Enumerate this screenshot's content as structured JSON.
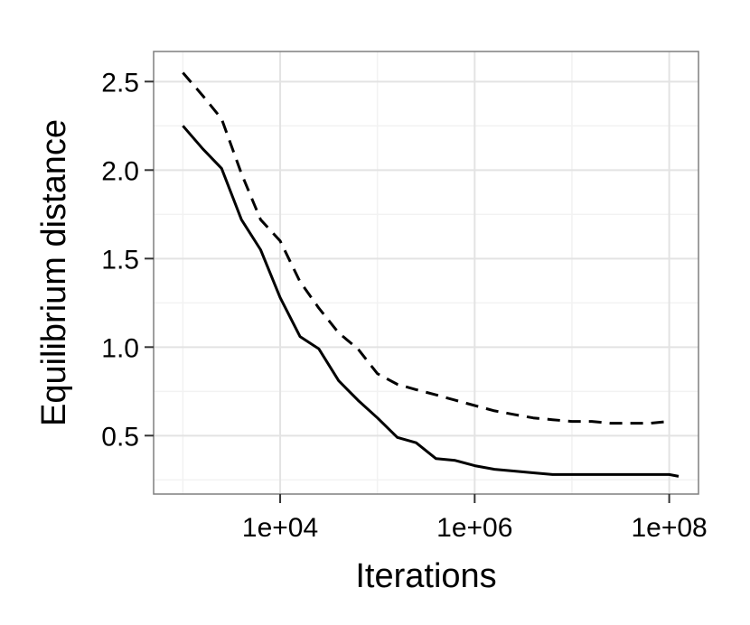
{
  "chart_data": {
    "type": "line",
    "title": "",
    "xlabel": "Iterations",
    "ylabel": "Equilibrium distance",
    "x_scale": "log10",
    "xlim": [
      500,
      200000000
    ],
    "ylim": [
      0.17,
      2.67
    ],
    "x_ticks": [
      {
        "value": 10000,
        "label": "1e+04"
      },
      {
        "value": 1000000,
        "label": "1e+06"
      },
      {
        "value": 100000000,
        "label": "1e+08"
      }
    ],
    "y_ticks": [
      {
        "value": 0.5,
        "label": "0.5"
      },
      {
        "value": 1.0,
        "label": "1.0"
      },
      {
        "value": 1.5,
        "label": "1.5"
      },
      {
        "value": 2.0,
        "label": "2.0"
      },
      {
        "value": 2.5,
        "label": "2.5"
      }
    ],
    "grid": true,
    "legend": "none",
    "series": [
      {
        "style": "solid",
        "color": "#000000",
        "x": [
          1000,
          1600,
          2500,
          4000,
          6300,
          10000,
          16000,
          25000,
          40000,
          63000,
          100000,
          160000,
          250000,
          400000,
          630000,
          1000000,
          1600000,
          2500000,
          4000000,
          6300000,
          10000000,
          16000000,
          25000000,
          40000000,
          63000000,
          100000000,
          125000000
        ],
        "y": [
          2.25,
          2.12,
          2.01,
          1.72,
          1.55,
          1.28,
          1.06,
          0.99,
          0.81,
          0.7,
          0.6,
          0.49,
          0.46,
          0.37,
          0.36,
          0.33,
          0.31,
          0.3,
          0.29,
          0.28,
          0.28,
          0.28,
          0.28,
          0.28,
          0.28,
          0.28,
          0.27
        ]
      },
      {
        "style": "dashed",
        "color": "#000000",
        "x": [
          1000,
          1600,
          2500,
          4000,
          6300,
          10000,
          16000,
          25000,
          40000,
          63000,
          100000,
          160000,
          250000,
          400000,
          630000,
          1000000,
          1600000,
          2500000,
          4000000,
          6300000,
          10000000,
          16000000,
          25000000,
          40000000,
          63000000,
          100000000
        ],
        "y": [
          2.55,
          2.42,
          2.29,
          1.98,
          1.72,
          1.6,
          1.37,
          1.22,
          1.08,
          0.99,
          0.85,
          0.79,
          0.76,
          0.73,
          0.7,
          0.67,
          0.64,
          0.62,
          0.6,
          0.59,
          0.58,
          0.58,
          0.57,
          0.57,
          0.57,
          0.58
        ]
      }
    ]
  }
}
